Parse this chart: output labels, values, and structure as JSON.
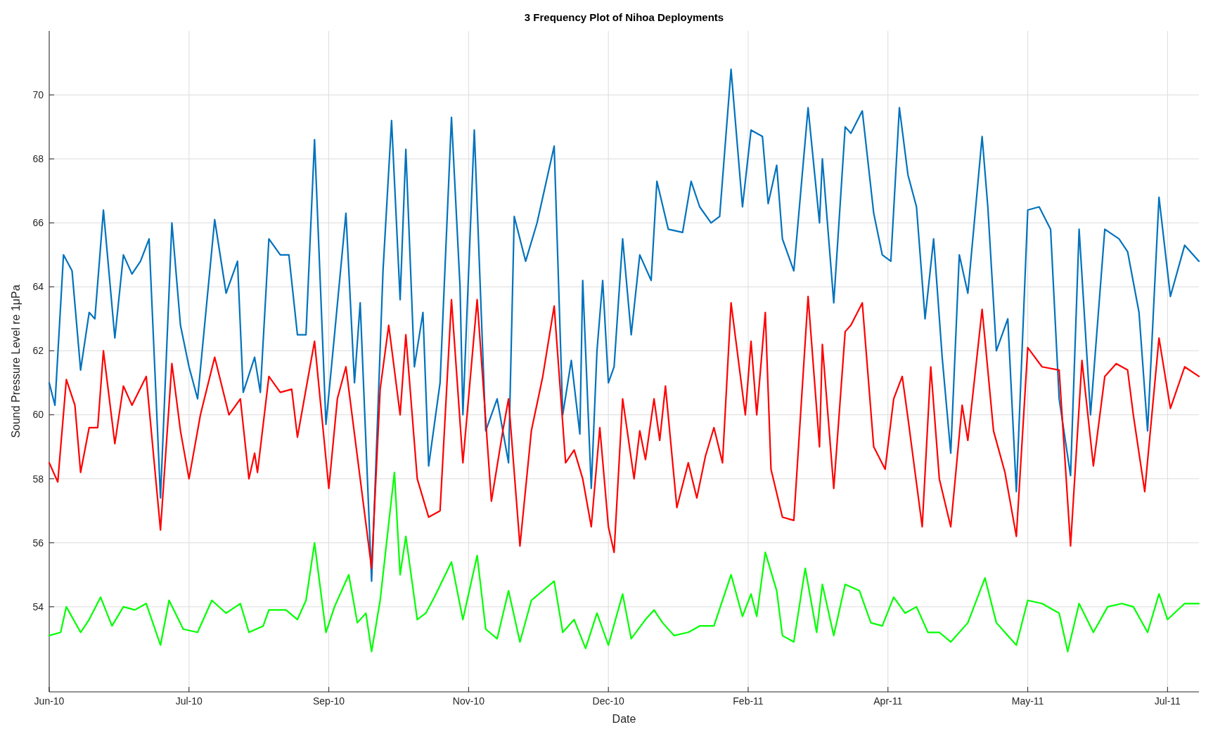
{
  "chart_data": {
    "type": "line",
    "title": "3 Frequency Plot of Nihoa Deployments",
    "xlabel": "Date",
    "ylabel": "Sound Pressure Level re 1μPa",
    "xlim": [
      "2010-06-11",
      "2011-07-19"
    ],
    "xticks": [
      {
        "value": "2010-06-11",
        "label": "Jun-10"
      },
      {
        "value": "2010-07-30",
        "label": "Jul-10"
      },
      {
        "value": "2010-09-17",
        "label": "Sep-10"
      },
      {
        "value": "2010-11-05",
        "label": "Nov-10"
      },
      {
        "value": "2010-12-24",
        "label": "Dec-10"
      },
      {
        "value": "2011-02-11",
        "label": "Feb-11"
      },
      {
        "value": "2011-04-01",
        "label": "Apr-11"
      },
      {
        "value": "2011-05-20",
        "label": "May-11"
      },
      {
        "value": "2011-07-08",
        "label": "Jul-11"
      }
    ],
    "ylim": [
      51.34,
      72
    ],
    "yticks": [
      54,
      56,
      58,
      60,
      62,
      64,
      66,
      68,
      70
    ],
    "grid": true,
    "marker": "none",
    "line_style": "solid",
    "series": [
      {
        "color": "#0072bd",
        "x": [
          "2010-06-11",
          "2010-06-13",
          "2010-06-16",
          "2010-06-19",
          "2010-06-22",
          "2010-06-25",
          "2010-06-27",
          "2010-06-30",
          "2010-07-04",
          "2010-07-07",
          "2010-07-10",
          "2010-07-13",
          "2010-07-16",
          "2010-07-20",
          "2010-07-24",
          "2010-07-27",
          "2010-07-30",
          "2010-08-02",
          "2010-08-08",
          "2010-08-12",
          "2010-08-16",
          "2010-08-18",
          "2010-08-22",
          "2010-08-24",
          "2010-08-27",
          "2010-08-31",
          "2010-09-03",
          "2010-09-06",
          "2010-09-09",
          "2010-09-12",
          "2010-09-16",
          "2010-09-19",
          "2010-09-23",
          "2010-09-26",
          "2010-09-28",
          "2010-10-02",
          "2010-10-06",
          "2010-10-09",
          "2010-10-12",
          "2010-10-14",
          "2010-10-17",
          "2010-10-20",
          "2010-10-22",
          "2010-10-26",
          "2010-10-30",
          "2010-11-02",
          "2010-11-03",
          "2010-11-07",
          "2010-11-11",
          "2010-11-15",
          "2010-11-19",
          "2010-11-21",
          "2010-11-25",
          "2010-11-29",
          "2010-12-05",
          "2010-12-08",
          "2010-12-11",
          "2010-12-14",
          "2010-12-15",
          "2010-12-18",
          "2010-12-20",
          "2010-12-22",
          "2010-12-24",
          "2010-12-26",
          "2010-12-29",
          "2011-01-01",
          "2011-01-04",
          "2011-01-08",
          "2011-01-10",
          "2011-01-14",
          "2011-01-19",
          "2011-01-22",
          "2011-01-25",
          "2011-01-29",
          "2011-02-01",
          "2011-02-05",
          "2011-02-09",
          "2011-02-12",
          "2011-02-16",
          "2011-02-18",
          "2011-02-21",
          "2011-02-23",
          "2011-02-27",
          "2011-03-04",
          "2011-03-08",
          "2011-03-09",
          "2011-03-13",
          "2011-03-17",
          "2011-03-19",
          "2011-03-23",
          "2011-03-27",
          "2011-03-30",
          "2011-04-02",
          "2011-04-05",
          "2011-04-08",
          "2011-04-11",
          "2011-04-14",
          "2011-04-17",
          "2011-04-20",
          "2011-04-23",
          "2011-04-26",
          "2011-04-29",
          "2011-05-04",
          "2011-05-06",
          "2011-05-09",
          "2011-05-13",
          "2011-05-16",
          "2011-05-20",
          "2011-05-24",
          "2011-05-28",
          "2011-05-31",
          "2011-06-04",
          "2011-06-07",
          "2011-06-11",
          "2011-06-16",
          "2011-06-21",
          "2011-06-24",
          "2011-06-28",
          "2011-07-01",
          "2011-07-05",
          "2011-07-09",
          "2011-07-14",
          "2011-07-19"
        ],
        "values": [
          61,
          60.3,
          65,
          64.5,
          61.4,
          63.2,
          63,
          66.4,
          62.4,
          65,
          64.4,
          64.8,
          65.5,
          57.4,
          66,
          62.8,
          61.5,
          60.5,
          66.1,
          63.8,
          64.8,
          60.7,
          61.8,
          60.7,
          65.5,
          65,
          65,
          62.5,
          62.5,
          68.6,
          59.7,
          62.5,
          66.3,
          61,
          63.5,
          54.8,
          64.5,
          69.2,
          63.6,
          68.3,
          61.5,
          63.2,
          58.4,
          61,
          69.3,
          64,
          60,
          68.9,
          59.5,
          60.5,
          58.5,
          66.2,
          64.8,
          66,
          68.4,
          60,
          61.7,
          59.4,
          64.2,
          57.7,
          62,
          64.2,
          61,
          61.5,
          65.5,
          62.5,
          65,
          64.2,
          67.3,
          65.8,
          65.7,
          67.3,
          66.5,
          66,
          66.2,
          70.8,
          66.5,
          68.9,
          68.7,
          66.6,
          67.8,
          65.5,
          64.5,
          69.6,
          66,
          68,
          63.5,
          69,
          68.8,
          69.5,
          66.3,
          65,
          64.8,
          69.6,
          67.5,
          66.5,
          63,
          65.5,
          61.8,
          58.8,
          65,
          63.8,
          68.7,
          66.5,
          62,
          63,
          57.6,
          66.4,
          66.5,
          65.8,
          60.5,
          58.1,
          65.8,
          60,
          65.8,
          65.5,
          65.1,
          63.2,
          59.5,
          66.8,
          63.7,
          65.3,
          64.8
        ]
      },
      {
        "color": "#ff0000",
        "x": [
          "2010-06-11",
          "2010-06-14",
          "2010-06-17",
          "2010-06-20",
          "2010-06-22",
          "2010-06-25",
          "2010-06-28",
          "2010-06-30",
          "2010-07-04",
          "2010-07-07",
          "2010-07-10",
          "2010-07-15",
          "2010-07-20",
          "2010-07-24",
          "2010-07-27",
          "2010-07-30",
          "2010-08-03",
          "2010-08-08",
          "2010-08-13",
          "2010-08-17",
          "2010-08-20",
          "2010-08-22",
          "2010-08-23",
          "2010-08-27",
          "2010-08-31",
          "2010-09-04",
          "2010-09-06",
          "2010-09-12",
          "2010-09-17",
          "2010-09-20",
          "2010-09-23",
          "2010-09-28",
          "2010-10-02",
          "2010-10-05",
          "2010-10-08",
          "2010-10-12",
          "2010-10-14",
          "2010-10-18",
          "2010-10-22",
          "2010-10-26",
          "2010-10-30",
          "2010-11-03",
          "2010-11-08",
          "2010-11-13",
          "2010-11-17",
          "2010-11-19",
          "2010-11-23",
          "2010-11-27",
          "2010-12-01",
          "2010-12-05",
          "2010-12-09",
          "2010-12-12",
          "2010-12-15",
          "2010-12-18",
          "2010-12-21",
          "2010-12-24",
          "2010-12-26",
          "2010-12-29",
          "2011-01-02",
          "2011-01-04",
          "2011-01-06",
          "2011-01-09",
          "2011-01-11",
          "2011-01-13",
          "2011-01-17",
          "2011-01-21",
          "2011-01-24",
          "2011-01-27",
          "2011-01-30",
          "2011-02-02",
          "2011-02-05",
          "2011-02-10",
          "2011-02-12",
          "2011-02-14",
          "2011-02-17",
          "2011-02-19",
          "2011-02-23",
          "2011-02-27",
          "2011-03-04",
          "2011-03-08",
          "2011-03-09",
          "2011-03-13",
          "2011-03-17",
          "2011-03-19",
          "2011-03-23",
          "2011-03-27",
          "2011-03-31",
          "2011-04-03",
          "2011-04-06",
          "2011-04-08",
          "2011-04-13",
          "2011-04-16",
          "2011-04-19",
          "2011-04-23",
          "2011-04-27",
          "2011-04-29",
          "2011-05-04",
          "2011-05-08",
          "2011-05-12",
          "2011-05-16",
          "2011-05-20",
          "2011-05-25",
          "2011-05-31",
          "2011-06-04",
          "2011-06-08",
          "2011-06-12",
          "2011-06-16",
          "2011-06-20",
          "2011-06-24",
          "2011-06-26",
          "2011-06-30",
          "2011-07-05",
          "2011-07-09",
          "2011-07-14",
          "2011-07-19"
        ],
        "values": [
          58.5,
          57.9,
          61.1,
          60.3,
          58.2,
          59.6,
          59.6,
          62,
          59.1,
          60.9,
          60.3,
          61.2,
          56.4,
          61.6,
          59.5,
          58,
          60,
          61.8,
          60,
          60.5,
          58,
          58.8,
          58.2,
          61.2,
          60.7,
          60.8,
          59.3,
          62.3,
          57.7,
          60.5,
          61.5,
          58,
          55.2,
          60.8,
          62.8,
          60,
          62.5,
          58,
          56.8,
          57,
          63.6,
          58.5,
          63.6,
          57.3,
          59.5,
          60.5,
          55.9,
          59.5,
          61.2,
          63.4,
          58.5,
          58.9,
          58,
          56.5,
          59.6,
          56.5,
          55.7,
          60.5,
          58,
          59.5,
          58.6,
          60.5,
          59.2,
          60.9,
          57.1,
          58.5,
          57.4,
          58.7,
          59.6,
          58.5,
          63.5,
          60,
          62.3,
          60,
          63.2,
          58.3,
          56.8,
          56.7,
          63.7,
          59,
          62.2,
          57.7,
          62.6,
          62.8,
          63.5,
          59,
          58.3,
          60.5,
          61.2,
          59.9,
          56.5,
          61.5,
          58,
          56.5,
          60.3,
          59.2,
          63.3,
          59.5,
          58.2,
          56.2,
          62.1,
          61.5,
          61.4,
          55.9,
          61.7,
          58.4,
          61.2,
          61.6,
          61.4,
          60,
          57.6,
          62.4,
          60.2,
          61.5,
          61.2
        ]
      },
      {
        "color": "#00ff00",
        "x": [
          "2010-06-11",
          "2010-06-15",
          "2010-06-17",
          "2010-06-22",
          "2010-06-25",
          "2010-06-29",
          "2010-07-03",
          "2010-07-07",
          "2010-07-11",
          "2010-07-15",
          "2010-07-20",
          "2010-07-23",
          "2010-07-28",
          "2010-08-02",
          "2010-08-07",
          "2010-08-12",
          "2010-08-17",
          "2010-08-20",
          "2010-08-25",
          "2010-08-27",
          "2010-09-02",
          "2010-09-06",
          "2010-09-09",
          "2010-09-12",
          "2010-09-16",
          "2010-09-19",
          "2010-09-24",
          "2010-09-27",
          "2010-09-30",
          "2010-10-02",
          "2010-10-05",
          "2010-10-10",
          "2010-10-12",
          "2010-10-14",
          "2010-10-18",
          "2010-10-21",
          "2010-10-24",
          "2010-10-30",
          "2010-11-03",
          "2010-11-08",
          "2010-11-11",
          "2010-11-15",
          "2010-11-19",
          "2010-11-23",
          "2010-11-27",
          "2010-12-05",
          "2010-12-08",
          "2010-12-12",
          "2010-12-16",
          "2010-12-20",
          "2010-12-24",
          "2010-12-29",
          "2011-01-01",
          "2011-01-06",
          "2011-01-09",
          "2011-01-12",
          "2011-01-16",
          "2011-01-21",
          "2011-01-25",
          "2011-01-30",
          "2011-02-05",
          "2011-02-09",
          "2011-02-12",
          "2011-02-14",
          "2011-02-17",
          "2011-02-21",
          "2011-02-23",
          "2011-02-27",
          "2011-03-03",
          "2011-03-07",
          "2011-03-09",
          "2011-03-13",
          "2011-03-17",
          "2011-03-22",
          "2011-03-26",
          "2011-03-30",
          "2011-04-03",
          "2011-04-07",
          "2011-04-11",
          "2011-04-15",
          "2011-04-19",
          "2011-04-23",
          "2011-04-29",
          "2011-05-05",
          "2011-05-09",
          "2011-05-12",
          "2011-05-16",
          "2011-05-20",
          "2011-05-25",
          "2011-05-31",
          "2011-06-03",
          "2011-06-07",
          "2011-06-12",
          "2011-06-17",
          "2011-06-22",
          "2011-06-26",
          "2011-07-01",
          "2011-07-05",
          "2011-07-08",
          "2011-07-14",
          "2011-07-19"
        ],
        "values": [
          53.1,
          53.2,
          54,
          53.2,
          53.6,
          54.3,
          53.4,
          54,
          53.9,
          54.1,
          52.8,
          54.2,
          53.3,
          53.2,
          54.2,
          53.8,
          54.1,
          53.2,
          53.4,
          53.9,
          53.9,
          53.6,
          54.2,
          56,
          53.2,
          54,
          55,
          53.5,
          53.8,
          52.6,
          54.2,
          58.2,
          55,
          56.2,
          53.6,
          53.8,
          54.3,
          55.4,
          53.6,
          55.6,
          53.3,
          53,
          54.5,
          52.9,
          54.2,
          54.8,
          53.2,
          53.6,
          52.7,
          53.8,
          52.8,
          54.4,
          53,
          53.6,
          53.9,
          53.5,
          53.1,
          53.2,
          53.4,
          53.4,
          55,
          53.7,
          54.4,
          53.7,
          55.7,
          54.5,
          53.1,
          52.9,
          55.2,
          53.2,
          54.7,
          53.1,
          54.7,
          54.5,
          53.5,
          53.4,
          54.3,
          53.8,
          54,
          53.2,
          53.2,
          52.9,
          53.5,
          54.9,
          53.5,
          53.2,
          52.8,
          54.2,
          54.1,
          53.8,
          52.6,
          54.1,
          53.2,
          54,
          54.1,
          54,
          53.2,
          54.4,
          53.6,
          54.1,
          54.1
        ]
      }
    ]
  }
}
